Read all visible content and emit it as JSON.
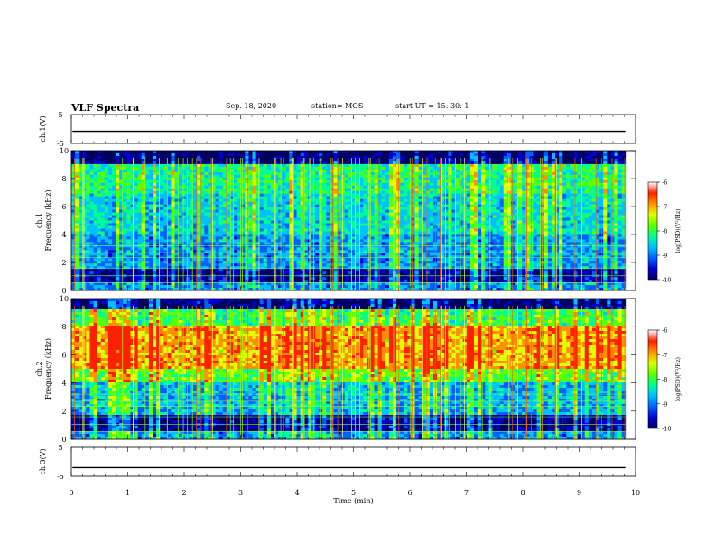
{
  "header": {
    "title": "VLF Spectra",
    "date": "Sep. 18, 2020",
    "station": "station= MOS",
    "start": "start  UT  =   15: 30: 1"
  },
  "colors": {
    "colormap": [
      "#000060",
      "#0000d0",
      "#0060ff",
      "#00c0ff",
      "#00ff90",
      "#60ff00",
      "#e0ff00",
      "#ff9000",
      "#ff2000",
      "#ffffff"
    ],
    "waveform": "#000000"
  },
  "chart_data": [
    {
      "type": "line",
      "panel": "ch1-waveform",
      "ylabel": "ch.1(V)",
      "yticks": [
        "5",
        "-5"
      ],
      "ylim": [
        -5,
        5
      ],
      "xlim": [
        0,
        10
      ],
      "series": [
        {
          "values_constant": -0.8
        }
      ]
    },
    {
      "type": "heatmap",
      "panel": "ch1-spectrogram",
      "ylabel": "ch.1\nFrequency (kHz)",
      "yticks": [
        "0",
        "2",
        "4",
        "6",
        "8",
        "10"
      ],
      "ylim": [
        0,
        10
      ],
      "xlim": [
        0,
        10
      ],
      "colorbar": {
        "label": "log(PSD)(V²/Hz)",
        "ticks": [
          "-6",
          "-7",
          "-8",
          "-9",
          "-10"
        ],
        "range": [
          -10,
          -6
        ]
      }
    },
    {
      "type": "heatmap",
      "panel": "ch2-spectrogram",
      "ylabel": "ch.2\nFrequency (kHz)",
      "yticks": [
        "0",
        "2",
        "4",
        "6",
        "8",
        "10"
      ],
      "ylim": [
        0,
        10
      ],
      "xlim": [
        0,
        10
      ],
      "colorbar": {
        "label": "log(PSD)(V²/Hz)",
        "ticks": [
          "-6",
          "-7",
          "-8",
          "-9",
          "-10"
        ],
        "range": [
          -10,
          -6
        ]
      }
    },
    {
      "type": "line",
      "panel": "ch3-waveform",
      "ylabel": "ch.3(V)",
      "yticks": [
        "5",
        "-5"
      ],
      "ylim": [
        -5,
        5
      ],
      "xlim": [
        0,
        10
      ],
      "xlabel": "Time (min)",
      "xticks": [
        "0",
        "1",
        "2",
        "3",
        "4",
        "5",
        "6",
        "7",
        "8",
        "9",
        "10"
      ],
      "series": [
        {
          "values_constant": -2.0
        }
      ]
    }
  ]
}
